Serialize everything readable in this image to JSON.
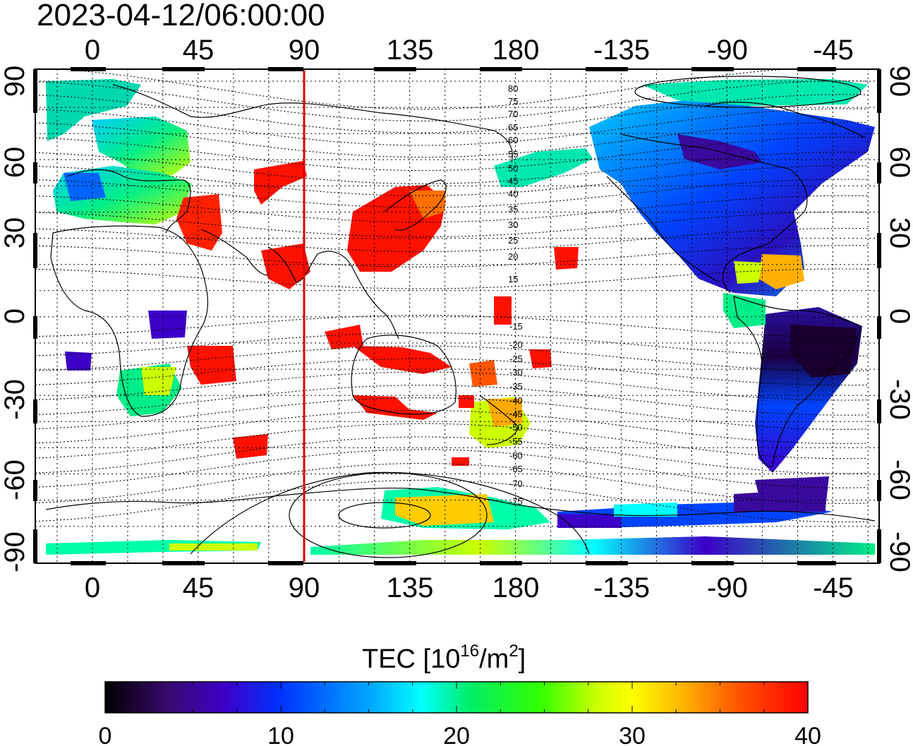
{
  "timestamp": "2023-04-12/06:00:00",
  "lon_ticks": [
    "0",
    "45",
    "90",
    "135",
    "180",
    "-135",
    "-90",
    "-45"
  ],
  "lat_ticks": [
    "90",
    "60",
    "30",
    "0",
    "-30",
    "-60",
    "-90"
  ],
  "contour_labels": [
    "80",
    "75",
    "70",
    "65",
    "60",
    "55",
    "50",
    "45",
    "40",
    "35",
    "30",
    "25",
    "20",
    "15",
    "-15",
    "-20",
    "-25",
    "-30",
    "-35",
    "-40",
    "-45",
    "-50",
    "-55",
    "-60",
    "-65",
    "-70",
    "-75"
  ],
  "colorbar": {
    "title_main": "TEC  [10",
    "title_exp1": "16",
    "title_mid": "/m",
    "title_exp2": "2",
    "title_end": "]",
    "range": [
      0,
      40
    ],
    "tick_labels": [
      "0",
      "10",
      "20",
      "30",
      "40"
    ]
  },
  "colormap": [
    "#000000",
    "#3a0a6e",
    "#3d00c8",
    "#0033ff",
    "#00aaff",
    "#00ffff",
    "#00ee66",
    "#33ff00",
    "#ccff00",
    "#ffff00",
    "#ffaa00",
    "#ff5500",
    "#ff0000"
  ],
  "sub_solar_longitude": 90,
  "gridline_style": "dotted",
  "coastlines": true
}
